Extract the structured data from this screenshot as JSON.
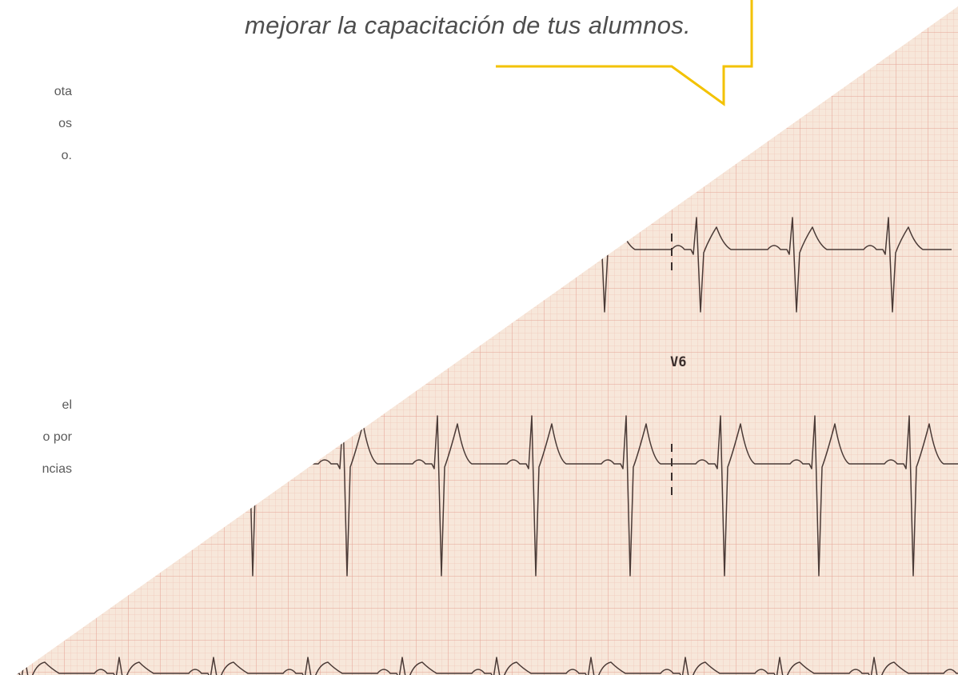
{
  "bubble": {
    "text": "mejorar la capacitación de tus alumnos."
  },
  "left_text": {
    "upper": [
      "ota",
      "os",
      "o."
    ],
    "lower": [
      "el",
      "o por",
      "ncias"
    ]
  },
  "ecg": {
    "lead_label": "V6"
  }
}
